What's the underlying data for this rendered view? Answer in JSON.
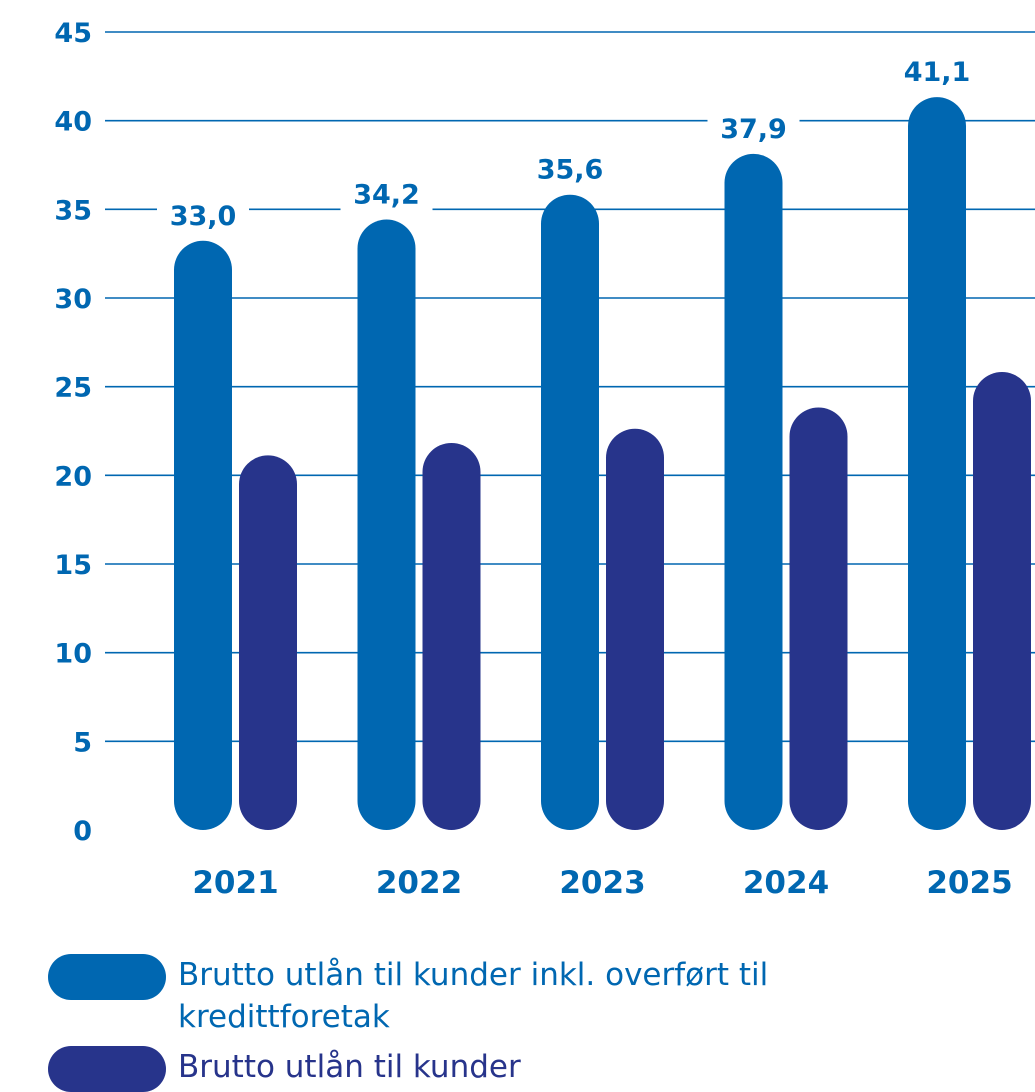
{
  "chart_data": {
    "type": "bar",
    "categories": [
      "2021",
      "2022",
      "2023",
      "2024",
      "2025"
    ],
    "series": [
      {
        "name": "Brutto utlån til kunder inkl. overført til kredittforetak",
        "values": [
          33.0,
          34.2,
          35.6,
          37.9,
          41.1
        ],
        "data_labels": [
          "33,0",
          "34,2",
          "35,6",
          "37,9",
          "41,1"
        ],
        "color": "#0067b1"
      },
      {
        "name": "Brutto utlån til kunder",
        "values": [
          20.9,
          21.6,
          22.4,
          23.6,
          25.6
        ],
        "color": "#27348b"
      }
    ],
    "yticks": [
      "0",
      "5",
      "10",
      "15",
      "20",
      "25",
      "30",
      "35",
      "40",
      "45"
    ],
    "ylim": [
      0,
      45
    ],
    "grid": true,
    "legend_position": "bottom-left",
    "colors": {
      "tick_text": "#0067b1",
      "gridline": "#0067b1"
    }
  }
}
